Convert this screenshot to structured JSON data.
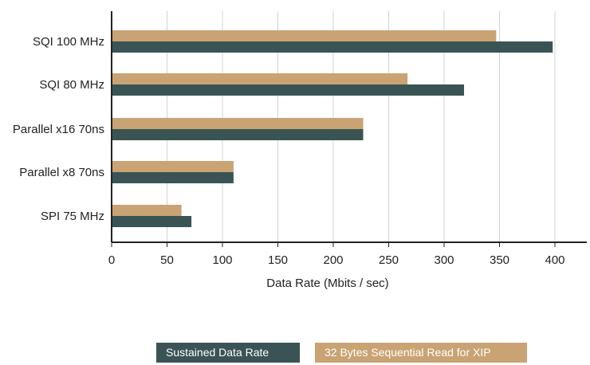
{
  "chart_data": {
    "type": "bar",
    "orientation": "horizontal",
    "categories": [
      "SQI 100 MHz",
      "SQI 80 MHz",
      "Parallel x16 70ns",
      "Parallel x8 70ns",
      "SPI 75 MHz"
    ],
    "series": [
      {
        "name": "Sustained Data Rate",
        "color": "#3a5455",
        "values": [
          398,
          318,
          227,
          110,
          72
        ]
      },
      {
        "name": "32 Bytes Sequential Read for XIP",
        "color": "#c9a373",
        "values": [
          347,
          267,
          227,
          110,
          63
        ]
      }
    ],
    "xlabel": "Data Rate (Mbits / sec)",
    "ylabel": "",
    "xlim": [
      0,
      420
    ],
    "xticks": [
      "0",
      "50",
      "100",
      "150",
      "200",
      "250",
      "300",
      "350",
      "400"
    ],
    "grid": "vertical",
    "legend": "bottom"
  }
}
